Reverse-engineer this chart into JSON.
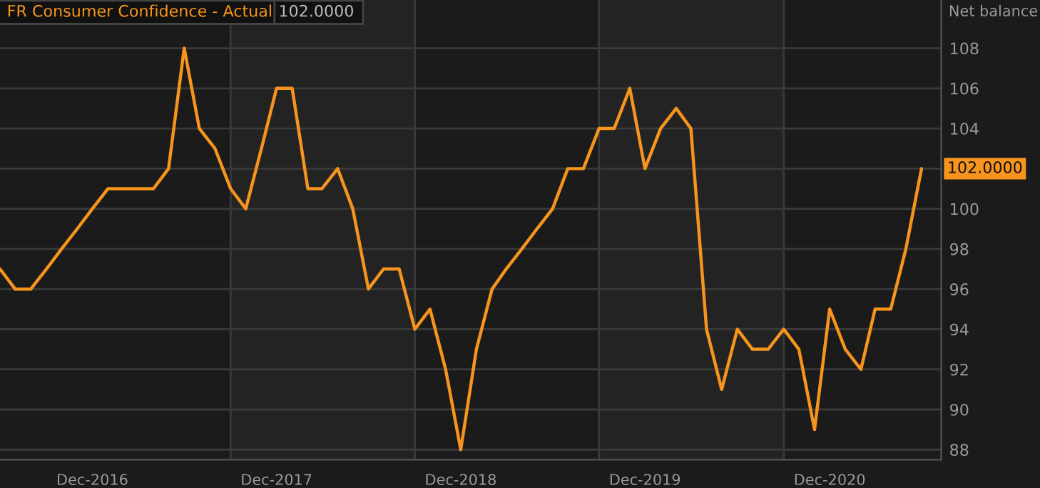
{
  "chart_data": {
    "type": "line",
    "ylabel": "Net balance",
    "x": [
      "2016-06",
      "2016-07",
      "2016-08",
      "2016-09",
      "2016-10",
      "2016-11",
      "2016-12",
      "2017-01",
      "2017-02",
      "2017-03",
      "2017-04",
      "2017-05",
      "2017-06",
      "2017-07",
      "2017-08",
      "2017-09",
      "2017-10",
      "2017-11",
      "2017-12",
      "2018-01",
      "2018-02",
      "2018-03",
      "2018-04",
      "2018-05",
      "2018-06",
      "2018-07",
      "2018-08",
      "2018-09",
      "2018-10",
      "2018-11",
      "2018-12",
      "2019-01",
      "2019-02",
      "2019-03",
      "2019-04",
      "2019-05",
      "2019-06",
      "2019-07",
      "2019-08",
      "2019-09",
      "2019-10",
      "2019-11",
      "2019-12",
      "2020-01",
      "2020-02",
      "2020-03",
      "2020-04",
      "2020-05",
      "2020-06",
      "2020-07",
      "2020-08",
      "2020-09",
      "2020-10",
      "2020-11",
      "2020-12",
      "2021-01",
      "2021-02",
      "2021-03",
      "2021-04",
      "2021-05",
      "2021-06"
    ],
    "series": [
      {
        "name": "FR Consumer Confidence - Actual",
        "color": "#f7941d",
        "values": [
          97,
          96,
          96,
          97,
          98,
          99,
          100,
          101,
          101,
          101,
          101,
          102,
          108,
          104,
          103,
          101,
          100,
          103,
          106,
          106,
          101,
          101,
          102,
          100,
          96,
          97,
          97,
          94,
          95,
          92,
          88,
          93,
          96,
          97,
          98,
          99,
          100,
          102,
          102,
          104,
          104,
          106,
          102,
          104,
          105,
          104,
          94,
          91,
          94,
          93,
          93,
          94,
          93,
          89,
          95,
          93,
          92,
          95,
          95,
          98,
          102
        ]
      }
    ],
    "annotations": [
      "102.0000",
      "102.0000"
    ],
    "xlim": [
      "2016-06-01",
      "2021-07-10"
    ],
    "xticks": [
      {
        "value": "2016-12-01",
        "label": "Dec-2016"
      },
      {
        "value": "2017-12-01",
        "label": "Dec-2017"
      },
      {
        "value": "2018-12-01",
        "label": "Dec-2018"
      },
      {
        "value": "2019-12-01",
        "label": "Dec-2019"
      },
      {
        "value": "2020-12-01",
        "label": "Dec-2020"
      }
    ],
    "ylim": [
      87.5,
      110.4
    ],
    "yticks": [
      88,
      90,
      92,
      94,
      96,
      98,
      100,
      {
        "value": 102,
        "label": null
      },
      104,
      106,
      108
    ],
    "bands": [
      {
        "axis": "x",
        "from": "2017-09-01",
        "to": "2018-09-01",
        "color": "#232323"
      },
      {
        "axis": "x",
        "from": "2019-09-01",
        "to": "2020-09-01",
        "color": "#232323"
      }
    ],
    "grid": "y",
    "legend": "top left"
  }
}
